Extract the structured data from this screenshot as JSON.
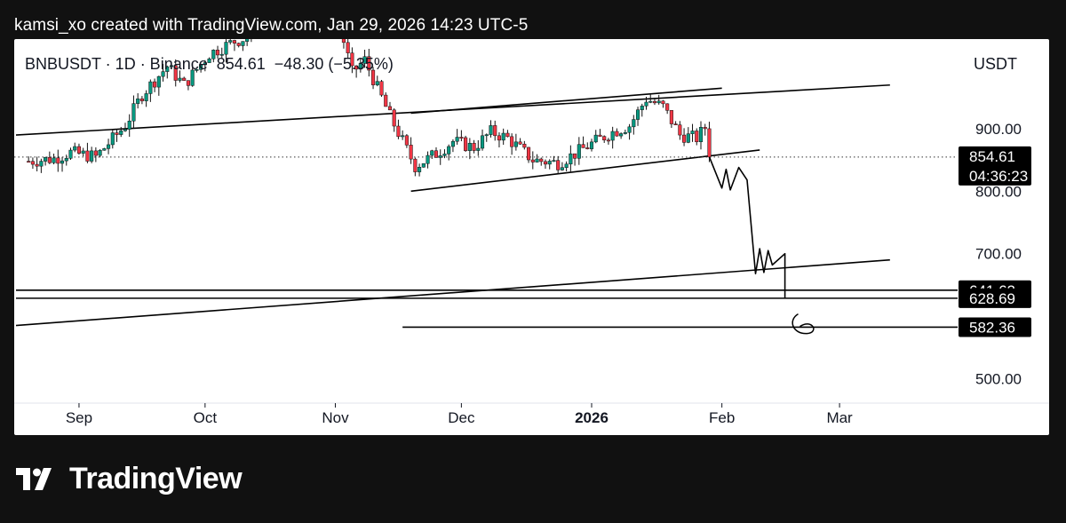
{
  "header": {
    "caption": "kamsi_xo created with TradingView.com, Jan 29, 2026 14:23 UTC-5"
  },
  "brand": {
    "name": "TradingView",
    "logo_icon": "tradingview-logo-icon"
  },
  "colors": {
    "up": "#089981",
    "down": "#f23645",
    "line": "#000000",
    "label_bg": "#000000",
    "label_fg": "#ffffff"
  },
  "chart_data": {
    "type": "candlestick",
    "symbol_label": "BNBUSDT · 1D · Binance",
    "last_price": "854.61",
    "change": "−48.30 (−5.35%)",
    "currency": "USDT",
    "countdown": "04:36:23",
    "x_labels": [
      {
        "text": "Sep",
        "date": "2025-09-01",
        "bold": false
      },
      {
        "text": "Oct",
        "date": "2025-10-01",
        "bold": false
      },
      {
        "text": "Nov",
        "date": "2025-11-01",
        "bold": false
      },
      {
        "text": "Dec",
        "date": "2025-12-01",
        "bold": false
      },
      {
        "text": "2026",
        "date": "2026-01-01",
        "bold": true
      },
      {
        "text": "Feb",
        "date": "2026-02-01",
        "bold": false
      },
      {
        "text": "Mar",
        "date": "2026-03-01",
        "bold": false
      }
    ],
    "y_ticks": [
      "900.00",
      "800.00",
      "700.00",
      "500.00"
    ],
    "price_labels": [
      {
        "text": "854.61",
        "sub": "04:36:23"
      },
      {
        "text": "641.62"
      },
      {
        "text": "628.69"
      },
      {
        "text": "582.36"
      }
    ],
    "candles_anchor_path": [
      [
        "2025-08-20",
        848
      ],
      [
        "2025-08-26",
        852
      ],
      [
        "2025-08-30",
        862
      ],
      [
        "2025-09-05",
        855
      ],
      [
        "2025-09-12",
        905
      ],
      [
        "2025-09-16",
        955
      ],
      [
        "2025-09-22",
        1000
      ],
      [
        "2025-09-26",
        970
      ],
      [
        "2025-10-02",
        1020
      ],
      [
        "2025-10-08",
        1040
      ],
      [
        "2025-11-01",
        1090
      ],
      [
        "2025-11-05",
        990
      ],
      [
        "2025-11-08",
        1010
      ],
      [
        "2025-11-14",
        920
      ],
      [
        "2025-11-20",
        840
      ],
      [
        "2025-11-25",
        860
      ],
      [
        "2025-11-29",
        880
      ],
      [
        "2025-12-04",
        870
      ],
      [
        "2025-12-08",
        895
      ],
      [
        "2025-12-12",
        885
      ],
      [
        "2025-12-18",
        850
      ],
      [
        "2025-12-24",
        845
      ],
      [
        "2025-12-28",
        860
      ],
      [
        "2026-01-02",
        880
      ],
      [
        "2026-01-06",
        895
      ],
      [
        "2026-01-10",
        905
      ],
      [
        "2026-01-14",
        948
      ],
      [
        "2026-01-18",
        935
      ],
      [
        "2026-01-22",
        890
      ],
      [
        "2026-01-26",
        885
      ],
      [
        "2026-01-28",
        902
      ],
      [
        "2026-01-29",
        855
      ]
    ],
    "trendlines": [
      {
        "name": "resistance-trendline",
        "from": [
          "2025-08-17",
          890
        ],
        "to": [
          "2026-03-13",
          970
        ]
      },
      {
        "name": "channel-upper",
        "from": [
          "2025-11-19",
          925
        ],
        "to": [
          "2026-02-01",
          965
        ]
      },
      {
        "name": "channel-lower",
        "from": [
          "2025-11-19",
          800
        ],
        "to": [
          "2026-02-10",
          866
        ]
      },
      {
        "name": "support-trendline",
        "from": [
          "2025-08-17",
          585
        ],
        "to": [
          "2026-03-13",
          690
        ]
      }
    ],
    "horizontal_levels": [
      {
        "value": 641.62,
        "from": "2025-08-17"
      },
      {
        "value": 628.69,
        "from": "2025-08-17"
      },
      {
        "value": 582.36,
        "from": "2025-11-17"
      }
    ],
    "projection_path": [
      [
        "2026-01-29",
        855
      ],
      [
        "2026-02-01",
        805
      ],
      [
        "2026-02-02",
        835
      ],
      [
        "2026-02-03",
        802
      ],
      [
        "2026-02-05",
        838
      ],
      [
        "2026-02-07",
        818
      ],
      [
        "2026-02-09",
        668
      ],
      [
        "2026-02-10",
        708
      ],
      [
        "2026-02-11",
        670
      ],
      [
        "2026-02-12",
        705
      ],
      [
        "2026-02-13",
        682
      ],
      [
        "2026-02-16",
        700
      ],
      [
        "2026-02-16",
        628
      ]
    ]
  }
}
